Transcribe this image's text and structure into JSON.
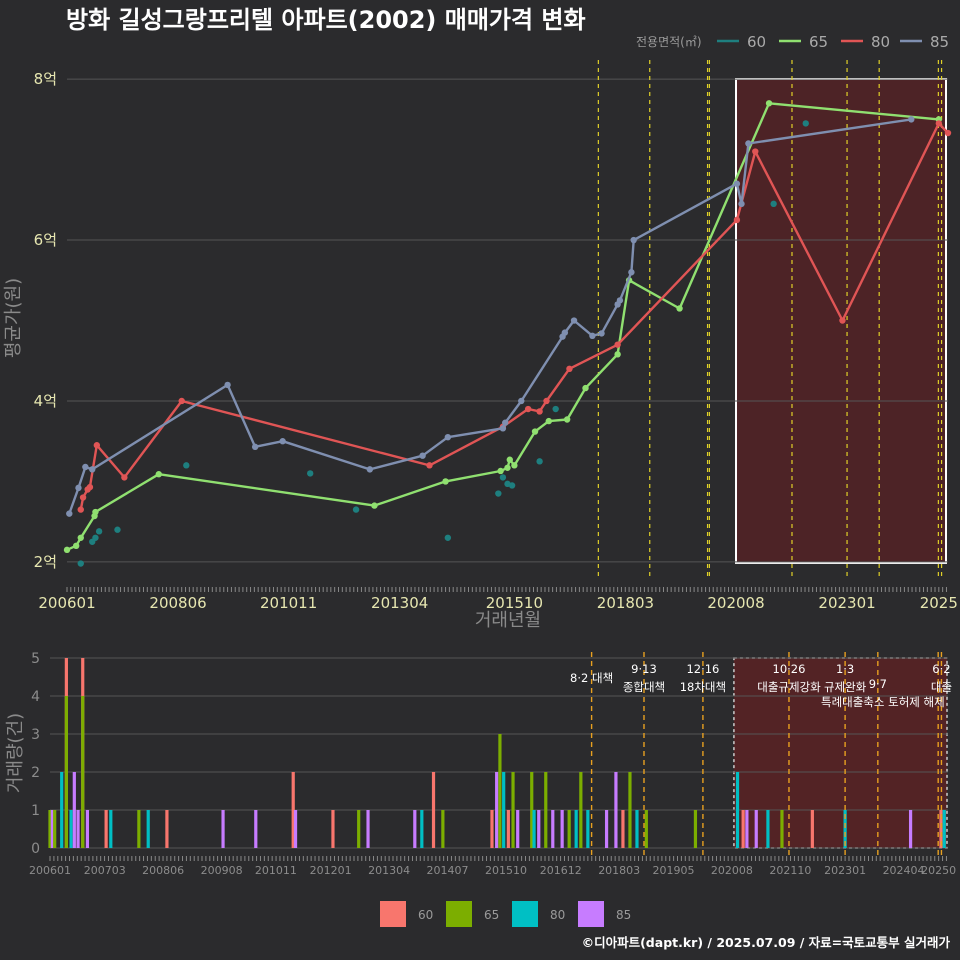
{
  "chart_data": {
    "title": "방화 길성그랑프리텔 아파트(2002) 매매가격 변화",
    "credit": "©디아파트(dapt.kr) / 2025.07.09 / 자료=국토교통부 실거래가",
    "legend_title": "전용면적(㎡)",
    "series_colors": {
      "60": "#1e7f7f",
      "65": "#90e070",
      "80": "#e05555",
      "85": "#7f8fb0"
    },
    "bar_colors": {
      "60": "#f8766d",
      "65": "#7cae00",
      "80": "#00bfc4",
      "85": "#c77cff"
    },
    "highlight_color": "#5a2224",
    "price_panel": {
      "type": "line",
      "ylabel": "평균가(원)",
      "xlabel": "거래년월",
      "ylim": [
        1.8,
        8.3
      ],
      "y_ticks": [
        2,
        4,
        6,
        8
      ],
      "y_tick_labels": [
        "2억",
        "4억",
        "6억",
        "8억"
      ],
      "x_ticks": [
        2006.0,
        2008.42,
        2010.83,
        2013.25,
        2015.75,
        2018.17,
        2020.58,
        2023.0,
        2025.0
      ],
      "x_tick_labels": [
        "200601",
        "200806",
        "201011",
        "201304",
        "201510",
        "201803",
        "202008",
        "202301",
        "2025"
      ],
      "xlim": [
        2006.0,
        2025.2
      ],
      "highlight_range": [
        2020.58,
        2025.2
      ],
      "policy_lines": [
        2017.58,
        2018.7,
        2019.96,
        2020.0,
        2021.8,
        2023.0,
        2023.7,
        2024.99,
        2025.06
      ],
      "series": [
        {
          "name": "60",
          "type": "scatter",
          "points": [
            [
              2006.3,
              1.98
            ],
            [
              2006.55,
              2.25
            ],
            [
              2006.62,
              2.3
            ],
            [
              2006.7,
              2.38
            ],
            [
              2007.1,
              2.4
            ],
            [
              2008.6,
              3.2
            ],
            [
              2011.3,
              3.1
            ],
            [
              2012.3,
              2.65
            ],
            [
              2014.3,
              2.3
            ],
            [
              2015.4,
              2.85
            ],
            [
              2015.5,
              3.05
            ],
            [
              2015.6,
              2.97
            ],
            [
              2015.7,
              2.95
            ],
            [
              2016.3,
              3.25
            ],
            [
              2016.65,
              3.9
            ],
            [
              2021.4,
              6.45
            ],
            [
              2022.1,
              7.45
            ]
          ]
        },
        {
          "name": "65",
          "type": "line",
          "points": [
            [
              2006.0,
              2.15
            ],
            [
              2006.2,
              2.2
            ],
            [
              2006.3,
              2.3
            ],
            [
              2006.6,
              2.57
            ],
            [
              2006.62,
              2.62
            ],
            [
              2008.0,
              3.09
            ],
            [
              2012.7,
              2.7
            ],
            [
              2014.25,
              3.0
            ],
            [
              2015.45,
              3.13
            ],
            [
              2015.6,
              3.17
            ],
            [
              2015.65,
              3.27
            ],
            [
              2015.75,
              3.2
            ],
            [
              2016.2,
              3.62
            ],
            [
              2016.5,
              3.75
            ],
            [
              2016.9,
              3.77
            ],
            [
              2017.3,
              4.16
            ],
            [
              2018.0,
              4.58
            ],
            [
              2018.25,
              5.5
            ],
            [
              2019.35,
              5.15
            ],
            [
              2021.3,
              7.7
            ],
            [
              2025.0,
              7.5
            ]
          ]
        },
        {
          "name": "80",
          "type": "line",
          "points": [
            [
              2006.3,
              2.65
            ],
            [
              2006.35,
              2.8
            ],
            [
              2006.45,
              2.9
            ],
            [
              2006.5,
              2.93
            ],
            [
              2006.65,
              3.45
            ],
            [
              2007.25,
              3.05
            ],
            [
              2008.5,
              4.0
            ],
            [
              2013.9,
              3.2
            ],
            [
              2015.5,
              3.68
            ],
            [
              2016.05,
              3.9
            ],
            [
              2016.3,
              3.87
            ],
            [
              2016.45,
              4.0
            ],
            [
              2016.95,
              4.4
            ],
            [
              2018.0,
              4.7
            ],
            [
              2020.6,
              6.25
            ],
            [
              2021.0,
              7.1
            ],
            [
              2022.9,
              5.0
            ],
            [
              2025.0,
              7.45
            ],
            [
              2025.2,
              7.33
            ]
          ]
        },
        {
          "name": "85",
          "type": "line",
          "points": [
            [
              2006.05,
              2.6
            ],
            [
              2006.25,
              2.92
            ],
            [
              2006.4,
              3.18
            ],
            [
              2006.55,
              3.15
            ],
            [
              2009.5,
              4.2
            ],
            [
              2010.1,
              3.43
            ],
            [
              2010.7,
              3.5
            ],
            [
              2012.6,
              3.15
            ],
            [
              2013.75,
              3.32
            ],
            [
              2014.3,
              3.55
            ],
            [
              2015.5,
              3.66
            ],
            [
              2015.55,
              3.73
            ],
            [
              2015.9,
              4.0
            ],
            [
              2016.8,
              4.8
            ],
            [
              2016.85,
              4.85
            ],
            [
              2017.05,
              5.0
            ],
            [
              2017.45,
              4.81
            ],
            [
              2017.65,
              4.84
            ],
            [
              2018.0,
              5.2
            ],
            [
              2018.05,
              5.25
            ],
            [
              2018.3,
              5.6
            ],
            [
              2018.35,
              6.0
            ],
            [
              2020.6,
              6.7
            ],
            [
              2020.7,
              6.45
            ],
            [
              2020.85,
              7.2
            ],
            [
              2024.4,
              7.5
            ]
          ]
        }
      ]
    },
    "volume_panel": {
      "type": "bar",
      "ylabel": "거래량(건)",
      "ylim": [
        0,
        5
      ],
      "y_ticks": [
        0,
        1,
        2,
        3,
        4,
        5
      ],
      "x_ticks": [
        2006.0,
        2007.17,
        2008.42,
        2009.67,
        2010.83,
        2012.0,
        2013.25,
        2014.5,
        2015.75,
        2016.92,
        2018.17,
        2019.33,
        2020.58,
        2021.83,
        2023.0,
        2024.25,
        2025.0
      ],
      "x_tick_labels": [
        "200601",
        "200703",
        "200806",
        "200908",
        "201011",
        "201201",
        "201304",
        "201407",
        "201510",
        "201612",
        "201803",
        "201905",
        "202008",
        "202110",
        "202301",
        "202404",
        "20250"
      ],
      "xlim": [
        2006.0,
        2025.2
      ],
      "highlight_range": [
        2020.58,
        2025.2
      ],
      "policy_lines": [
        2017.58,
        2018.7,
        2019.96,
        2021.8,
        2023.0,
        2023.7,
        2024.99,
        2025.06
      ],
      "policy_labels": [
        {
          "x": 2017.58,
          "date": "8·2",
          "name": "대책",
          "row": 1
        },
        {
          "x": 2018.7,
          "date": "9·13",
          "name": "종합대책",
          "row": 0
        },
        {
          "x": 2019.96,
          "date": "12·16",
          "name": "18차대책",
          "row": 0
        },
        {
          "x": 2021.8,
          "date": "10·26",
          "name": "대출규제강화",
          "row": 0
        },
        {
          "x": 2023.0,
          "date": "1·3",
          "name": "규제완화",
          "row": 0
        },
        {
          "x": 2023.7,
          "date": "9·7",
          "name": "특례대출축소 토허제 해제",
          "row": 1
        },
        {
          "x": 2025.06,
          "date": "6·2",
          "name": "대출",
          "row": 0
        }
      ],
      "bars": [
        [
          2006.0,
          "65",
          1
        ],
        [
          2006.05,
          "85",
          1
        ],
        [
          2006.1,
          "65",
          1
        ],
        [
          2006.25,
          "80",
          2
        ],
        [
          2006.35,
          "60",
          5
        ],
        [
          2006.35,
          "65",
          4
        ],
        [
          2006.45,
          "80",
          1
        ],
        [
          2006.52,
          "85",
          2
        ],
        [
          2006.6,
          "85",
          1
        ],
        [
          2006.7,
          "60",
          5
        ],
        [
          2006.7,
          "65",
          4
        ],
        [
          2006.8,
          "85",
          1
        ],
        [
          2007.2,
          "60",
          1
        ],
        [
          2007.3,
          "80",
          1
        ],
        [
          2007.9,
          "65",
          1
        ],
        [
          2008.1,
          "80",
          1
        ],
        [
          2008.5,
          "60",
          1
        ],
        [
          2009.7,
          "85",
          1
        ],
        [
          2010.4,
          "85",
          1
        ],
        [
          2011.2,
          "60",
          2
        ],
        [
          2011.25,
          "85",
          1
        ],
        [
          2012.05,
          "60",
          1
        ],
        [
          2012.6,
          "65",
          1
        ],
        [
          2012.8,
          "85",
          1
        ],
        [
          2013.8,
          "85",
          1
        ],
        [
          2013.95,
          "80",
          1
        ],
        [
          2014.2,
          "60",
          2
        ],
        [
          2014.4,
          "65",
          1
        ],
        [
          2015.45,
          "60",
          1
        ],
        [
          2015.55,
          "85",
          2
        ],
        [
          2015.62,
          "65",
          3
        ],
        [
          2015.7,
          "80",
          2
        ],
        [
          2015.8,
          "60",
          1
        ],
        [
          2015.9,
          "65",
          2
        ],
        [
          2016.0,
          "85",
          1
        ],
        [
          2016.3,
          "65",
          2
        ],
        [
          2016.35,
          "80",
          1
        ],
        [
          2016.45,
          "85",
          1
        ],
        [
          2016.6,
          "65",
          2
        ],
        [
          2016.75,
          "85",
          1
        ],
        [
          2016.95,
          "85",
          1
        ],
        [
          2017.1,
          "65",
          1
        ],
        [
          2017.25,
          "80",
          1
        ],
        [
          2017.35,
          "65",
          2
        ],
        [
          2017.5,
          "80",
          1
        ],
        [
          2017.9,
          "85",
          1
        ],
        [
          2018.1,
          "85",
          2
        ],
        [
          2018.25,
          "60",
          1
        ],
        [
          2018.4,
          "65",
          2
        ],
        [
          2018.55,
          "80",
          1
        ],
        [
          2018.75,
          "65",
          1
        ],
        [
          2019.8,
          "65",
          1
        ],
        [
          2020.7,
          "80",
          2
        ],
        [
          2020.82,
          "60",
          1
        ],
        [
          2020.9,
          "85",
          1
        ],
        [
          2021.1,
          "85",
          1
        ],
        [
          2021.35,
          "80",
          1
        ],
        [
          2021.65,
          "65",
          1
        ],
        [
          2022.3,
          "60",
          1
        ],
        [
          2023.0,
          "80",
          1
        ],
        [
          2024.4,
          "85",
          1
        ],
        [
          2025.05,
          "60",
          1
        ],
        [
          2025.12,
          "80",
          1
        ]
      ]
    },
    "legends": {
      "price": [
        "60",
        "65",
        "80",
        "85"
      ],
      "volume": [
        "60",
        "65",
        "80",
        "85"
      ]
    }
  }
}
